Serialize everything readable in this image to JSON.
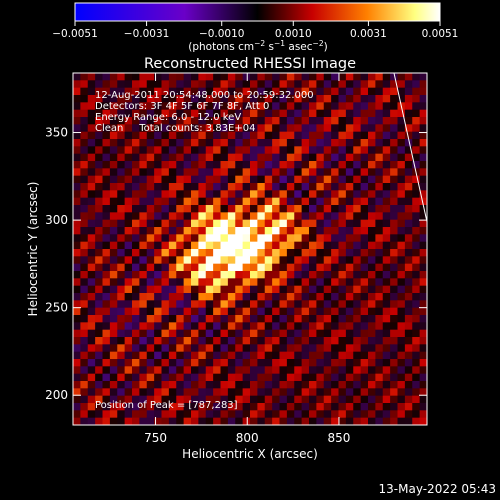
{
  "chart_data": {
    "type": "heatmap",
    "title": "Reconstructed RHESSI Image",
    "xlabel": "Heliocentric X (arcsec)",
    "ylabel": "Heliocentric Y (arcsec)",
    "xlim": [
      705,
      898
    ],
    "ylim": [
      183,
      384
    ],
    "x_ticks": [
      750,
      800,
      850
    ],
    "y_ticks": [
      200,
      250,
      300,
      350
    ],
    "x_tick_labels": [
      "750",
      "800",
      "850"
    ],
    "y_tick_labels": [
      "200",
      "250",
      "300",
      "350"
    ],
    "colorbar": {
      "range": [
        -0.0051,
        0.0051
      ],
      "ticks": [
        -0.0051,
        -0.0031,
        -0.001,
        0.001,
        0.0031,
        0.0051
      ],
      "tick_labels": [
        "−0.0051",
        "−0.0031",
        "−0.0010",
        "0.0010",
        "0.0031",
        "0.0051"
      ],
      "units_main": "(photons cm",
      "units_exp1": "−2",
      "units_mid": " s",
      "units_exp2": "−1",
      "units_end": " asec",
      "units_exp3": "−2",
      "units_close": ")",
      "colors": [
        "#0000ff",
        "#6a00c8",
        "#000000",
        "#c80000",
        "#ff8000",
        "#ffff80",
        "#ffffff"
      ]
    },
    "annotations": {
      "time_range": "12-Aug-2011 20:54:48.000 to 20:59:32.000",
      "detectors": "Detectors: 3F 4F 5F 6F 7F 8F, Att 0",
      "energy": "Energy Range: 6.0 - 12.0 keV",
      "clean": "Clean     Total counts: 3.83E+04",
      "peak": "Position of Peak = [787,283]"
    },
    "peak": {
      "x": 787,
      "y": 283
    },
    "limb_points": [
      [
        880,
        384
      ],
      [
        898,
        299
      ]
    ],
    "footer_timestamp": "13-May-2022 05:43"
  }
}
